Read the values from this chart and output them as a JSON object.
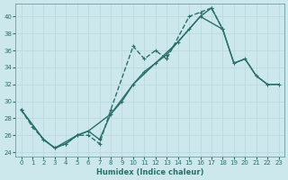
{
  "xlabel": "Humidex (Indice chaleur)",
  "xlim": [
    -0.5,
    23.5
  ],
  "ylim": [
    23.5,
    41.5
  ],
  "yticks": [
    24,
    26,
    28,
    30,
    32,
    34,
    36,
    38,
    40
  ],
  "xticks": [
    0,
    1,
    2,
    3,
    4,
    5,
    6,
    7,
    8,
    9,
    10,
    11,
    12,
    13,
    14,
    15,
    16,
    17,
    18,
    19,
    20,
    21,
    22,
    23
  ],
  "bg_color": "#cce8ec",
  "grid_color": "#b8d8dc",
  "line_color": "#2a7068",
  "series": [
    {
      "x": [
        0,
        1,
        2,
        3,
        4,
        5,
        6,
        7,
        8,
        10,
        11,
        12,
        13,
        15,
        16,
        17,
        18
      ],
      "y": [
        29.0,
        27.0,
        25.5,
        24.5,
        25.0,
        26.0,
        26.0,
        25.0,
        29.0,
        36.5,
        35.0,
        36.0,
        35.0,
        40.0,
        40.5,
        41.0,
        38.5
      ],
      "linestyle": "--",
      "linewidth": 1.0
    },
    {
      "x": [
        0,
        2,
        3,
        4,
        5,
        6,
        7,
        8,
        9,
        10,
        11,
        12,
        13,
        14,
        15,
        16,
        17,
        18,
        19,
        20,
        21,
        22,
        23
      ],
      "y": [
        29.0,
        25.5,
        24.5,
        25.0,
        26.0,
        26.5,
        25.5,
        28.5,
        30.0,
        32.0,
        33.5,
        34.5,
        35.5,
        37.0,
        38.5,
        40.0,
        41.0,
        38.5,
        34.5,
        35.0,
        33.0,
        32.0,
        32.0
      ],
      "linestyle": "-",
      "linewidth": 1.0
    },
    {
      "x": [
        0,
        2,
        3,
        5,
        6,
        8,
        10,
        12,
        14,
        16,
        18,
        19,
        20,
        21,
        22,
        23
      ],
      "y": [
        29.0,
        25.5,
        24.5,
        26.0,
        26.5,
        28.5,
        32.0,
        34.5,
        37.0,
        40.0,
        38.5,
        34.5,
        35.0,
        33.0,
        32.0,
        32.0
      ],
      "linestyle": "-",
      "linewidth": 1.0
    }
  ]
}
